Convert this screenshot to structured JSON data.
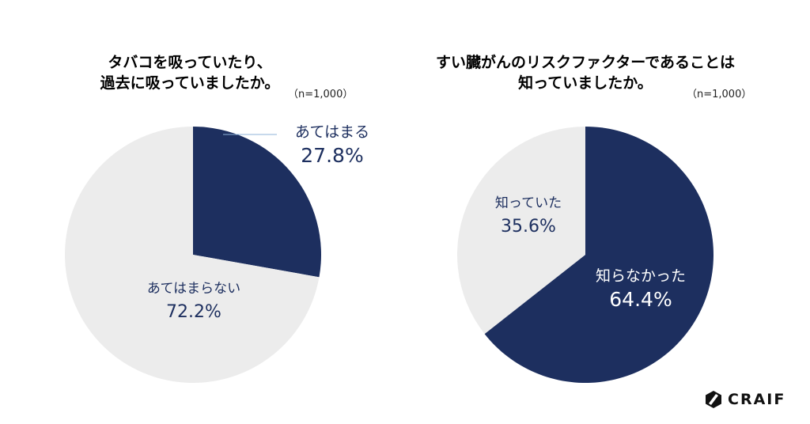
{
  "chart_data": [
    {
      "type": "pie",
      "title_lines": [
        "タバコを吸っていたり、",
        "過去に吸っていましたか。"
      ],
      "sample": "（n=1,000）",
      "slices": [
        {
          "label": "あてはまる",
          "value": 27.8,
          "value_label": "27.8%",
          "color": "#1d2f5f"
        },
        {
          "label": "あてはまらない",
          "value": 72.2,
          "value_label": "72.2%",
          "color": "#ececec"
        }
      ],
      "start": "top",
      "direction": "clockwise"
    },
    {
      "type": "pie",
      "title_lines": [
        "すい臓がんのリスクファクターであることは",
        "知っていましたか。"
      ],
      "sample": "（n=1,000）",
      "slices": [
        {
          "label": "知らなかった",
          "value": 64.4,
          "value_label": "64.4%",
          "color": "#1d2f5f"
        },
        {
          "label": "知っていた",
          "value": 35.6,
          "value_label": "35.6%",
          "color": "#ececec"
        }
      ],
      "start": "top",
      "direction": "clockwise"
    }
  ],
  "logo": {
    "text": "CRAIF"
  }
}
